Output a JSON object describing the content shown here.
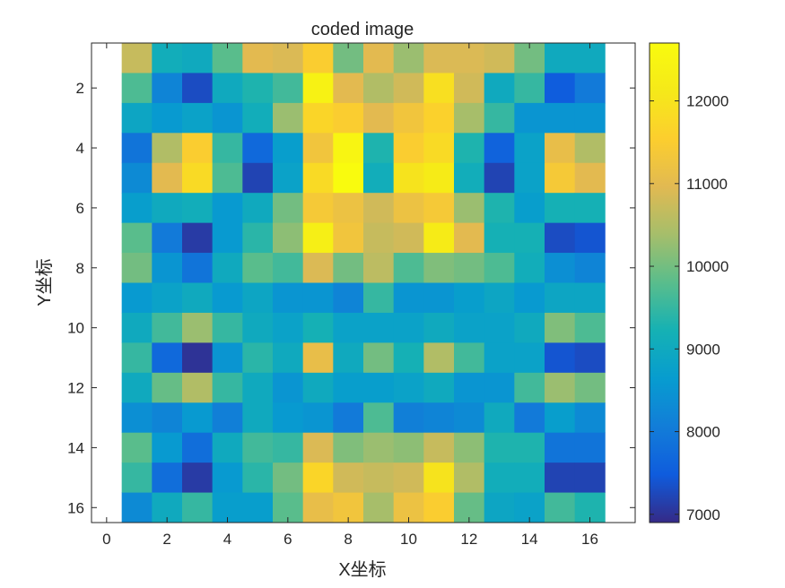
{
  "chart_data": {
    "type": "heatmap",
    "title": "coded image",
    "xlabel": "X坐标",
    "ylabel": "Y坐标",
    "xlim": [
      -0.5,
      17.5
    ],
    "ylim": [
      0.5,
      16.5
    ],
    "y_reversed": true,
    "x_ticks": [
      0,
      2,
      4,
      6,
      8,
      10,
      12,
      14,
      16
    ],
    "y_ticks": [
      2,
      4,
      6,
      8,
      10,
      12,
      14,
      16
    ],
    "colormap": "parula",
    "colorbar": {
      "limits": [
        6900,
        12700
      ],
      "ticks": [
        7000,
        8000,
        9000,
        10000,
        11000,
        12000
      ]
    },
    "x": [
      1,
      2,
      3,
      4,
      5,
      6,
      7,
      8,
      9,
      10,
      11,
      12,
      13,
      14,
      15,
      16
    ],
    "y": [
      1,
      2,
      3,
      4,
      5,
      6,
      7,
      8,
      9,
      10,
      11,
      12,
      13,
      14,
      15,
      16
    ],
    "z": [
      [
        10700,
        9100,
        9000,
        9800,
        11000,
        10900,
        11500,
        10000,
        11000,
        10300,
        10900,
        10900,
        10800,
        10000,
        9000,
        9000
      ],
      [
        9700,
        8200,
        7300,
        9000,
        9300,
        9600,
        12400,
        11000,
        10500,
        10800,
        11900,
        10800,
        9000,
        9500,
        7500,
        8000
      ],
      [
        8900,
        8600,
        8800,
        8500,
        9100,
        10300,
        11700,
        11500,
        11000,
        11300,
        11600,
        10400,
        9500,
        8500,
        8500,
        8500
      ],
      [
        7900,
        10500,
        11500,
        9500,
        7700,
        8700,
        11300,
        12500,
        9300,
        11500,
        11800,
        9300,
        7600,
        8800,
        11100,
        10500
      ],
      [
        8300,
        11000,
        11800,
        9700,
        7200,
        8800,
        11800,
        12700,
        9100,
        12000,
        12200,
        9100,
        7200,
        8800,
        11400,
        11000
      ],
      [
        8700,
        9000,
        9100,
        8600,
        9000,
        10000,
        11400,
        11200,
        10800,
        11200,
        11400,
        10300,
        9300,
        8700,
        9200,
        9200
      ],
      [
        9800,
        8000,
        7100,
        8600,
        9400,
        10200,
        12300,
        11300,
        10700,
        10800,
        12200,
        11000,
        9200,
        9200,
        7300,
        7400
      ],
      [
        10000,
        8500,
        7900,
        9000,
        9800,
        9600,
        10900,
        10000,
        10600,
        9700,
        10100,
        10000,
        9700,
        9100,
        8400,
        8200
      ],
      [
        8600,
        8800,
        9000,
        8600,
        8900,
        8500,
        8500,
        8200,
        9500,
        8500,
        8500,
        8700,
        8900,
        8600,
        8900,
        8900
      ],
      [
        9000,
        9600,
        10300,
        9500,
        9000,
        8800,
        9200,
        8800,
        8800,
        8800,
        9000,
        8800,
        8800,
        9000,
        10100,
        9700
      ],
      [
        9500,
        7700,
        7000,
        8500,
        9400,
        9000,
        11100,
        9000,
        10000,
        9200,
        10500,
        9600,
        8800,
        8800,
        7400,
        7300
      ],
      [
        9000,
        9900,
        10500,
        9500,
        9000,
        8500,
        9000,
        8700,
        8700,
        8800,
        9000,
        8500,
        8500,
        9600,
        10300,
        10000
      ],
      [
        8400,
        8200,
        8600,
        8100,
        9000,
        8600,
        8500,
        8000,
        9700,
        8100,
        8200,
        8300,
        9000,
        8000,
        8700,
        8300
      ],
      [
        9800,
        8600,
        7800,
        9000,
        9600,
        9500,
        10900,
        10100,
        10300,
        10200,
        10700,
        10200,
        9300,
        9300,
        7900,
        7900
      ],
      [
        9500,
        7800,
        7100,
        8600,
        9400,
        10000,
        11700,
        10800,
        10700,
        10800,
        12000,
        10500,
        9100,
        9100,
        7200,
        7200
      ],
      [
        8300,
        9000,
        9500,
        8700,
        8700,
        9800,
        11100,
        11300,
        10400,
        11200,
        11500,
        9900,
        8900,
        8800,
        9600,
        9300
      ]
    ]
  }
}
